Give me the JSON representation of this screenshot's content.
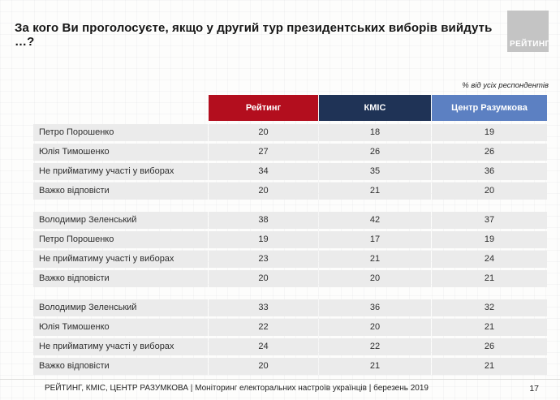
{
  "slide": {
    "logo_text": "РЕЙТИНГ",
    "footer": "РЕЙТИНГ, КМІС, ЦЕНТР РАЗУМКОВА  | Моніторинг електоральних настроїв українців | березень 2019",
    "page_number": "17"
  },
  "colors": {
    "rating_red": "#b30e1e",
    "kiis_navy": "#1f3356",
    "razumkov_blue": "#5c80c2",
    "row_gray": "#ebebeb",
    "logo_gray": "#c4c4c4"
  },
  "chart_data": {
    "type": "table",
    "title": "За кого Ви проголосуєте, якщо у другий тур президентських виборів вийдуть …?",
    "unit_note": "% від усіх респондентів",
    "columns": [
      "Рейтинг",
      "КМІС",
      "Центр Разумкова"
    ],
    "groups": [
      {
        "rows": [
          {
            "label": "Петро Порошенко",
            "values": [
              20,
              18,
              19
            ]
          },
          {
            "label": "Юлія Тимошенко",
            "values": [
              27,
              26,
              26
            ]
          },
          {
            "label": "Не прийматиму участі у виборах",
            "values": [
              34,
              35,
              36
            ]
          },
          {
            "label": "Важко відповісти",
            "values": [
              20,
              21,
              20
            ]
          }
        ]
      },
      {
        "rows": [
          {
            "label": "Володимир Зеленський",
            "values": [
              38,
              42,
              37
            ]
          },
          {
            "label": "Петро Порошенко",
            "values": [
              19,
              17,
              19
            ]
          },
          {
            "label": "Не прийматиму участі у виборах",
            "values": [
              23,
              21,
              24
            ]
          },
          {
            "label": "Важко відповісти",
            "values": [
              20,
              20,
              21
            ]
          }
        ]
      },
      {
        "rows": [
          {
            "label": "Володимир Зеленський",
            "values": [
              33,
              36,
              32
            ]
          },
          {
            "label": "Юлія Тимошенко",
            "values": [
              22,
              20,
              21
            ]
          },
          {
            "label": "Не прийматиму участі у виборах",
            "values": [
              24,
              22,
              26
            ]
          },
          {
            "label": "Важко відповісти",
            "values": [
              20,
              21,
              21
            ]
          }
        ]
      }
    ]
  }
}
